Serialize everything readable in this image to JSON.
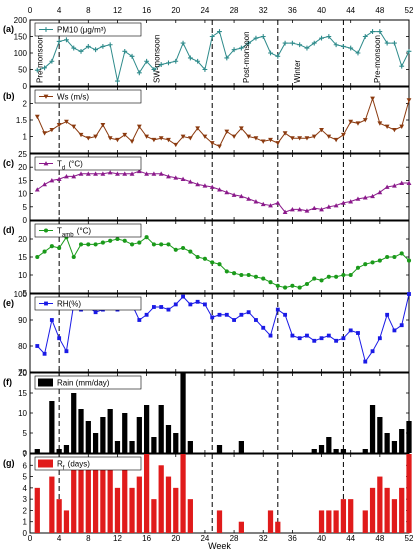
{
  "chart_data": [
    {
      "type": "line",
      "panel_letter": "(a)",
      "legend": "PM10 (μg/m³)",
      "color": "#2e8b8b",
      "marker": "plus",
      "ylim": [
        0,
        200
      ],
      "yticks": [
        0,
        50,
        100,
        150,
        200
      ],
      "x": [
        1,
        2,
        3,
        4,
        5,
        6,
        7,
        8,
        9,
        10,
        11,
        12,
        13,
        14,
        15,
        16,
        17,
        18,
        19,
        20,
        21,
        22,
        23,
        24,
        25,
        26,
        27,
        28,
        29,
        30,
        31,
        32,
        33,
        34,
        35,
        36,
        37,
        38,
        39,
        40,
        41,
        42,
        43,
        44,
        45,
        46,
        47,
        48,
        49,
        50,
        51,
        52
      ],
      "values": [
        48,
        55,
        75,
        135,
        140,
        115,
        105,
        120,
        110,
        120,
        125,
        15,
        105,
        90,
        40,
        75,
        50,
        65,
        70,
        75,
        130,
        85,
        75,
        50,
        150,
        165,
        85,
        110,
        115,
        130,
        145,
        150,
        100,
        90,
        130,
        130,
        125,
        115,
        130,
        145,
        150,
        125,
        120,
        115,
        100,
        150,
        165,
        165,
        130,
        130,
        60,
        105
      ]
    },
    {
      "type": "line",
      "panel_letter": "(b)",
      "legend": "Ws (m/s)",
      "color": "#8b3a0f",
      "marker": "triangle-down",
      "ylim": [
        0.5,
        2.5
      ],
      "yticks": [
        1.0,
        1.5,
        2.0
      ],
      "x": [
        1,
        2,
        3,
        4,
        5,
        6,
        7,
        8,
        9,
        10,
        11,
        12,
        13,
        14,
        15,
        16,
        17,
        18,
        19,
        20,
        21,
        22,
        23,
        24,
        25,
        26,
        27,
        28,
        29,
        30,
        31,
        32,
        33,
        34,
        35,
        36,
        37,
        38,
        39,
        40,
        41,
        42,
        43,
        44,
        45,
        46,
        47,
        48,
        49,
        50,
        51,
        52
      ],
      "values": [
        1.6,
        1.1,
        1.2,
        1.35,
        1.45,
        1.3,
        1.05,
        0.95,
        1.0,
        1.35,
        0.95,
        0.9,
        1.05,
        0.85,
        1.3,
        1.0,
        0.9,
        0.95,
        0.9,
        0.75,
        1.0,
        0.95,
        1.25,
        1.0,
        0.8,
        0.7,
        1.15,
        1.0,
        1.25,
        1.0,
        0.95,
        0.85,
        0.9,
        0.8,
        1.1,
        0.95,
        0.95,
        0.95,
        1.0,
        1.2,
        1.0,
        0.9,
        1.05,
        1.45,
        1.4,
        1.5,
        2.15,
        1.4,
        1.3,
        1.2,
        1.3,
        2.1
      ]
    },
    {
      "type": "line",
      "panel_letter": "(c)",
      "legend": "T_d (°C)",
      "color": "#8b1a8b",
      "marker": "triangle-up",
      "ylim": [
        0,
        25
      ],
      "yticks": [
        0,
        5,
        10,
        15,
        20,
        25
      ],
      "x": [
        1,
        2,
        3,
        4,
        5,
        6,
        7,
        8,
        9,
        10,
        11,
        12,
        13,
        14,
        15,
        16,
        17,
        18,
        19,
        20,
        21,
        22,
        23,
        24,
        25,
        26,
        27,
        28,
        29,
        30,
        31,
        32,
        33,
        34,
        35,
        36,
        37,
        38,
        39,
        40,
        41,
        42,
        43,
        44,
        45,
        46,
        47,
        48,
        49,
        50,
        51,
        52
      ],
      "values": [
        11.5,
        13.5,
        15.0,
        15.5,
        16.5,
        16.5,
        17.5,
        17.5,
        17.5,
        17.5,
        18.0,
        17.5,
        17.5,
        17.5,
        18.5,
        17.5,
        17.5,
        17.5,
        16.5,
        16.0,
        15.5,
        14.5,
        13.5,
        13.0,
        12.5,
        11.5,
        10.5,
        9.5,
        9.0,
        8.0,
        7.0,
        6.0,
        5.5,
        6.5,
        3.0,
        4.0,
        4.0,
        3.5,
        4.5,
        4.0,
        5.0,
        5.5,
        6.5,
        7.0,
        8.0,
        8.5,
        9.0,
        10.5,
        12.5,
        13.0,
        14.0,
        14.0
      ]
    },
    {
      "type": "line",
      "panel_letter": "(d)",
      "legend": "T_amb (°C)",
      "color": "#1a9a1a",
      "marker": "circle",
      "ylim": [
        5,
        25
      ],
      "yticks": [
        5,
        10,
        15,
        20
      ],
      "x": [
        1,
        2,
        3,
        4,
        5,
        6,
        7,
        8,
        9,
        10,
        11,
        12,
        13,
        14,
        15,
        16,
        17,
        18,
        19,
        20,
        21,
        22,
        23,
        24,
        25,
        26,
        27,
        28,
        29,
        30,
        31,
        32,
        33,
        34,
        35,
        36,
        37,
        38,
        39,
        40,
        41,
        42,
        43,
        44,
        45,
        46,
        47,
        48,
        49,
        50,
        51,
        52
      ],
      "values": [
        15.0,
        16.5,
        18.0,
        17.5,
        20.5,
        15.0,
        18.5,
        18.5,
        18.5,
        19.0,
        19.5,
        20.0,
        19.5,
        18.5,
        19.0,
        20.5,
        18.5,
        18.5,
        18.5,
        17.0,
        17.5,
        16.5,
        15.0,
        14.5,
        13.5,
        13.0,
        11.0,
        10.5,
        10.0,
        10.0,
        9.5,
        9.0,
        8.0,
        7.0,
        6.5,
        7.0,
        6.5,
        7.5,
        9.0,
        8.5,
        9.5,
        9.5,
        10.0,
        10.0,
        12.0,
        13.0,
        13.5,
        14.0,
        15.0,
        15.0,
        16.0,
        14.0
      ]
    },
    {
      "type": "line",
      "panel_letter": "(e)",
      "legend": "RH(%)",
      "color": "#1a1ae6",
      "marker": "square",
      "ylim": [
        70,
        100
      ],
      "yticks": [
        70,
        80,
        90,
        100
      ],
      "x": [
        1,
        2,
        3,
        4,
        5,
        6,
        7,
        8,
        9,
        10,
        11,
        12,
        13,
        14,
        15,
        16,
        17,
        18,
        19,
        20,
        21,
        22,
        23,
        24,
        25,
        26,
        27,
        28,
        29,
        30,
        31,
        32,
        33,
        34,
        35,
        36,
        37,
        38,
        39,
        40,
        41,
        42,
        43,
        44,
        45,
        46,
        47,
        48,
        49,
        50,
        51,
        52
      ],
      "values": [
        80,
        77,
        90,
        83,
        78,
        96,
        94,
        95,
        93,
        94,
        96,
        94,
        95,
        96,
        90,
        92,
        95,
        95,
        94,
        96,
        99,
        96,
        97,
        96,
        91,
        92,
        92,
        90,
        92,
        93,
        90,
        87,
        84,
        94,
        92,
        84,
        83,
        84,
        82,
        83,
        84,
        82,
        83,
        86,
        85,
        74,
        78,
        83,
        92,
        86,
        88,
        100
      ]
    },
    {
      "type": "bar",
      "panel_letter": "(f)",
      "legend": "Rain (mm/day)",
      "color": "#000000",
      "ylim": [
        0,
        20
      ],
      "yticks": [
        0,
        5,
        10,
        15,
        20
      ],
      "x": [
        1,
        2,
        3,
        4,
        5,
        6,
        7,
        8,
        9,
        10,
        11,
        12,
        13,
        14,
        15,
        16,
        17,
        18,
        19,
        20,
        21,
        22,
        23,
        24,
        25,
        26,
        27,
        28,
        29,
        30,
        31,
        32,
        33,
        34,
        35,
        36,
        37,
        38,
        39,
        40,
        41,
        42,
        43,
        44,
        45,
        46,
        47,
        48,
        49,
        50,
        51,
        52
      ],
      "values": [
        1,
        0,
        13,
        1,
        2,
        15,
        11,
        8,
        5,
        9,
        11,
        3,
        10,
        3,
        9,
        12,
        4,
        12,
        7,
        5,
        20,
        3,
        0,
        0,
        0,
        2,
        0,
        0,
        3,
        0,
        0,
        0,
        0,
        0,
        0,
        0,
        0,
        0,
        1,
        2,
        4,
        1,
        1,
        0,
        0,
        1,
        12,
        9,
        5,
        3,
        6,
        8
      ]
    },
    {
      "type": "bar",
      "panel_letter": "(g)",
      "legend": "R_f (days)",
      "color": "#e01b1b",
      "ylim": [
        0,
        7
      ],
      "yticks": [
        0,
        1,
        2,
        3,
        4,
        5,
        6,
        7
      ],
      "x": [
        1,
        2,
        3,
        4,
        5,
        6,
        7,
        8,
        9,
        10,
        11,
        12,
        13,
        14,
        15,
        16,
        17,
        18,
        19,
        20,
        21,
        22,
        23,
        24,
        25,
        26,
        27,
        28,
        29,
        30,
        31,
        32,
        33,
        34,
        35,
        36,
        37,
        38,
        39,
        40,
        41,
        42,
        43,
        44,
        45,
        46,
        47,
        48,
        49,
        50,
        51,
        52
      ],
      "values": [
        4,
        0,
        5,
        3,
        2,
        6,
        6,
        6,
        6,
        6,
        6,
        4,
        6,
        4,
        5,
        7,
        3,
        6,
        5,
        4,
        7,
        3,
        0,
        0,
        0,
        2,
        0,
        0,
        1,
        0,
        0,
        0,
        2,
        1,
        0,
        0,
        0,
        0,
        0,
        2,
        2,
        2,
        3,
        3,
        0,
        2,
        4,
        5,
        4,
        3,
        4,
        7
      ]
    }
  ],
  "x_axis": {
    "label": "Week",
    "range": [
      0,
      52
    ],
    "ticks": [
      "0",
      "4",
      "8",
      "12",
      "16",
      "20",
      "24",
      "28",
      "32",
      "36",
      "40",
      "44",
      "48",
      "52"
    ]
  },
  "season_dividers": [
    4,
    25,
    34,
    43
  ],
  "season_labels": [
    "Pre-monsoon",
    "SW-monsoon",
    "Post-monsoon",
    "Winter",
    "Pre-monsoon"
  ]
}
